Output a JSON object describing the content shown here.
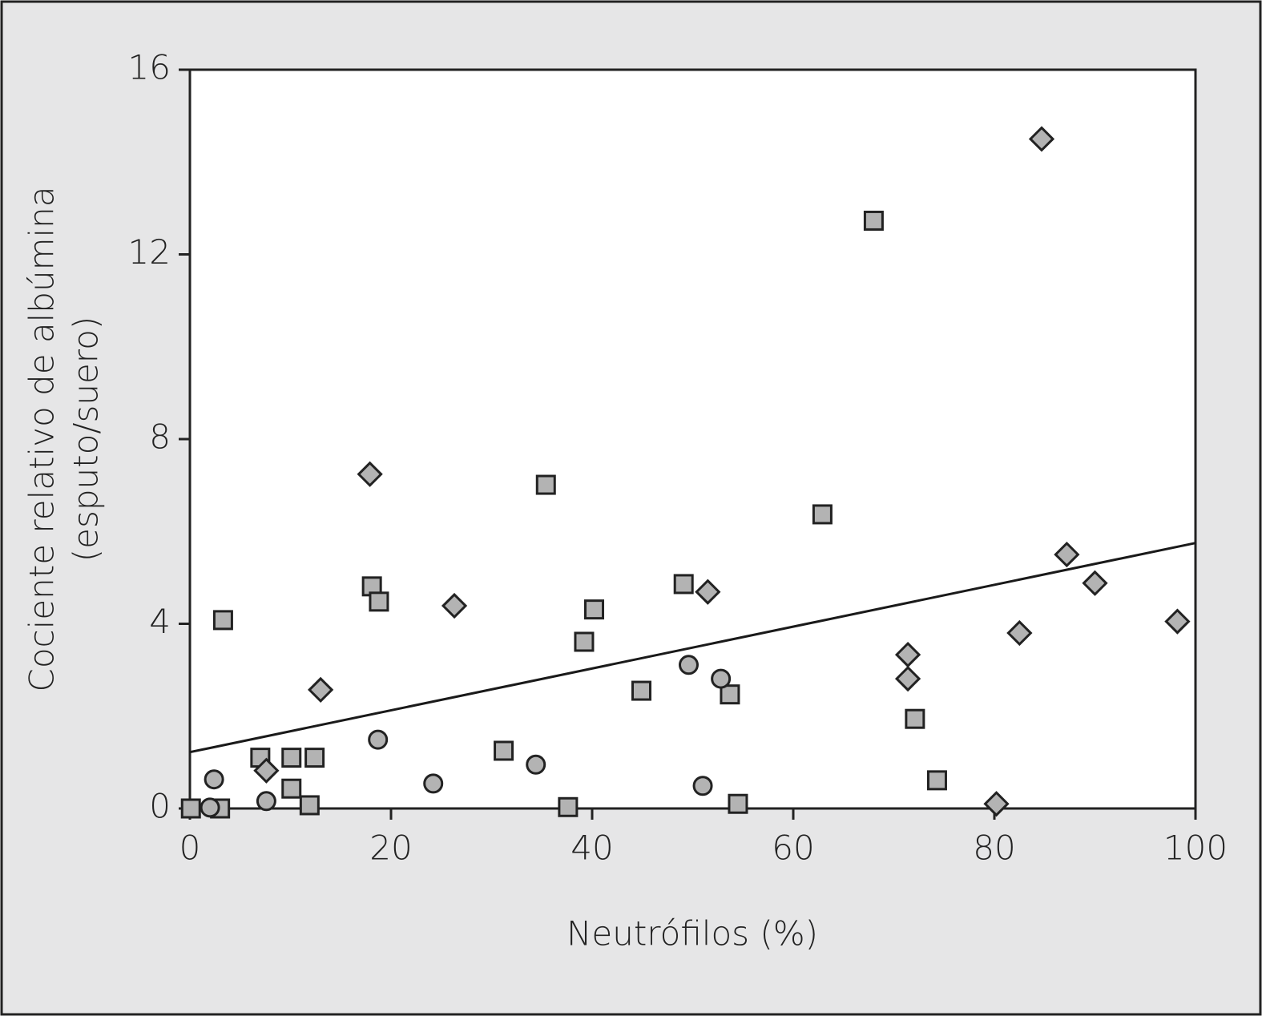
{
  "chart_data": {
    "type": "scatter",
    "xlabel": "Neutrófilos (%)",
    "ylabel": [
      "Cociente relativo de albúmina",
      "(esputo/suero)"
    ],
    "xlim": [
      0,
      100
    ],
    "xticks": [
      0,
      20,
      40,
      60,
      80,
      100
    ],
    "ylim": [
      0,
      16
    ],
    "yticks": [
      0,
      4,
      8,
      12,
      16
    ],
    "series": [
      {
        "marker": "square",
        "color": "#b3b3b3",
        "x": [
          0.1,
          3.3,
          3.0,
          7.0,
          10.1,
          12.4,
          10.1,
          11.9,
          18.1,
          18.8,
          31.2,
          35.4,
          37.6,
          39.2,
          40.2,
          44.9,
          49.1,
          53.7,
          54.5,
          62.9,
          68.0,
          72.1,
          74.3
        ],
        "values": [
          0.0,
          4.08,
          0.0,
          1.1,
          1.1,
          1.1,
          0.43,
          0.07,
          4.81,
          4.48,
          1.25,
          7.01,
          0.03,
          3.61,
          4.31,
          2.55,
          4.86,
          2.47,
          0.1,
          6.37,
          12.73,
          1.94,
          0.61
        ]
      },
      {
        "marker": "circle",
        "color": "#b3b3b3",
        "x": [
          2.0,
          2.4,
          7.6,
          18.7,
          24.2,
          34.4,
          49.6,
          51.0,
          52.8
        ],
        "values": [
          0.02,
          0.63,
          0.16,
          1.49,
          0.54,
          0.95,
          3.11,
          0.49,
          2.81
        ]
      },
      {
        "marker": "diamond",
        "color": "#b3b3b3",
        "x": [
          7.6,
          13.0,
          17.9,
          26.3,
          51.5,
          71.4,
          71.4,
          80.2,
          82.5,
          84.7,
          87.2,
          90.0,
          98.2
        ],
        "values": [
          0.82,
          2.57,
          7.24,
          4.39,
          4.69,
          3.33,
          2.81,
          0.1,
          3.8,
          14.5,
          5.5,
          4.88,
          4.05
        ]
      }
    ],
    "trendline": {
      "color": "#1a1a1a",
      "x": [
        0,
        100
      ],
      "values": [
        1.22,
        5.75
      ]
    }
  }
}
